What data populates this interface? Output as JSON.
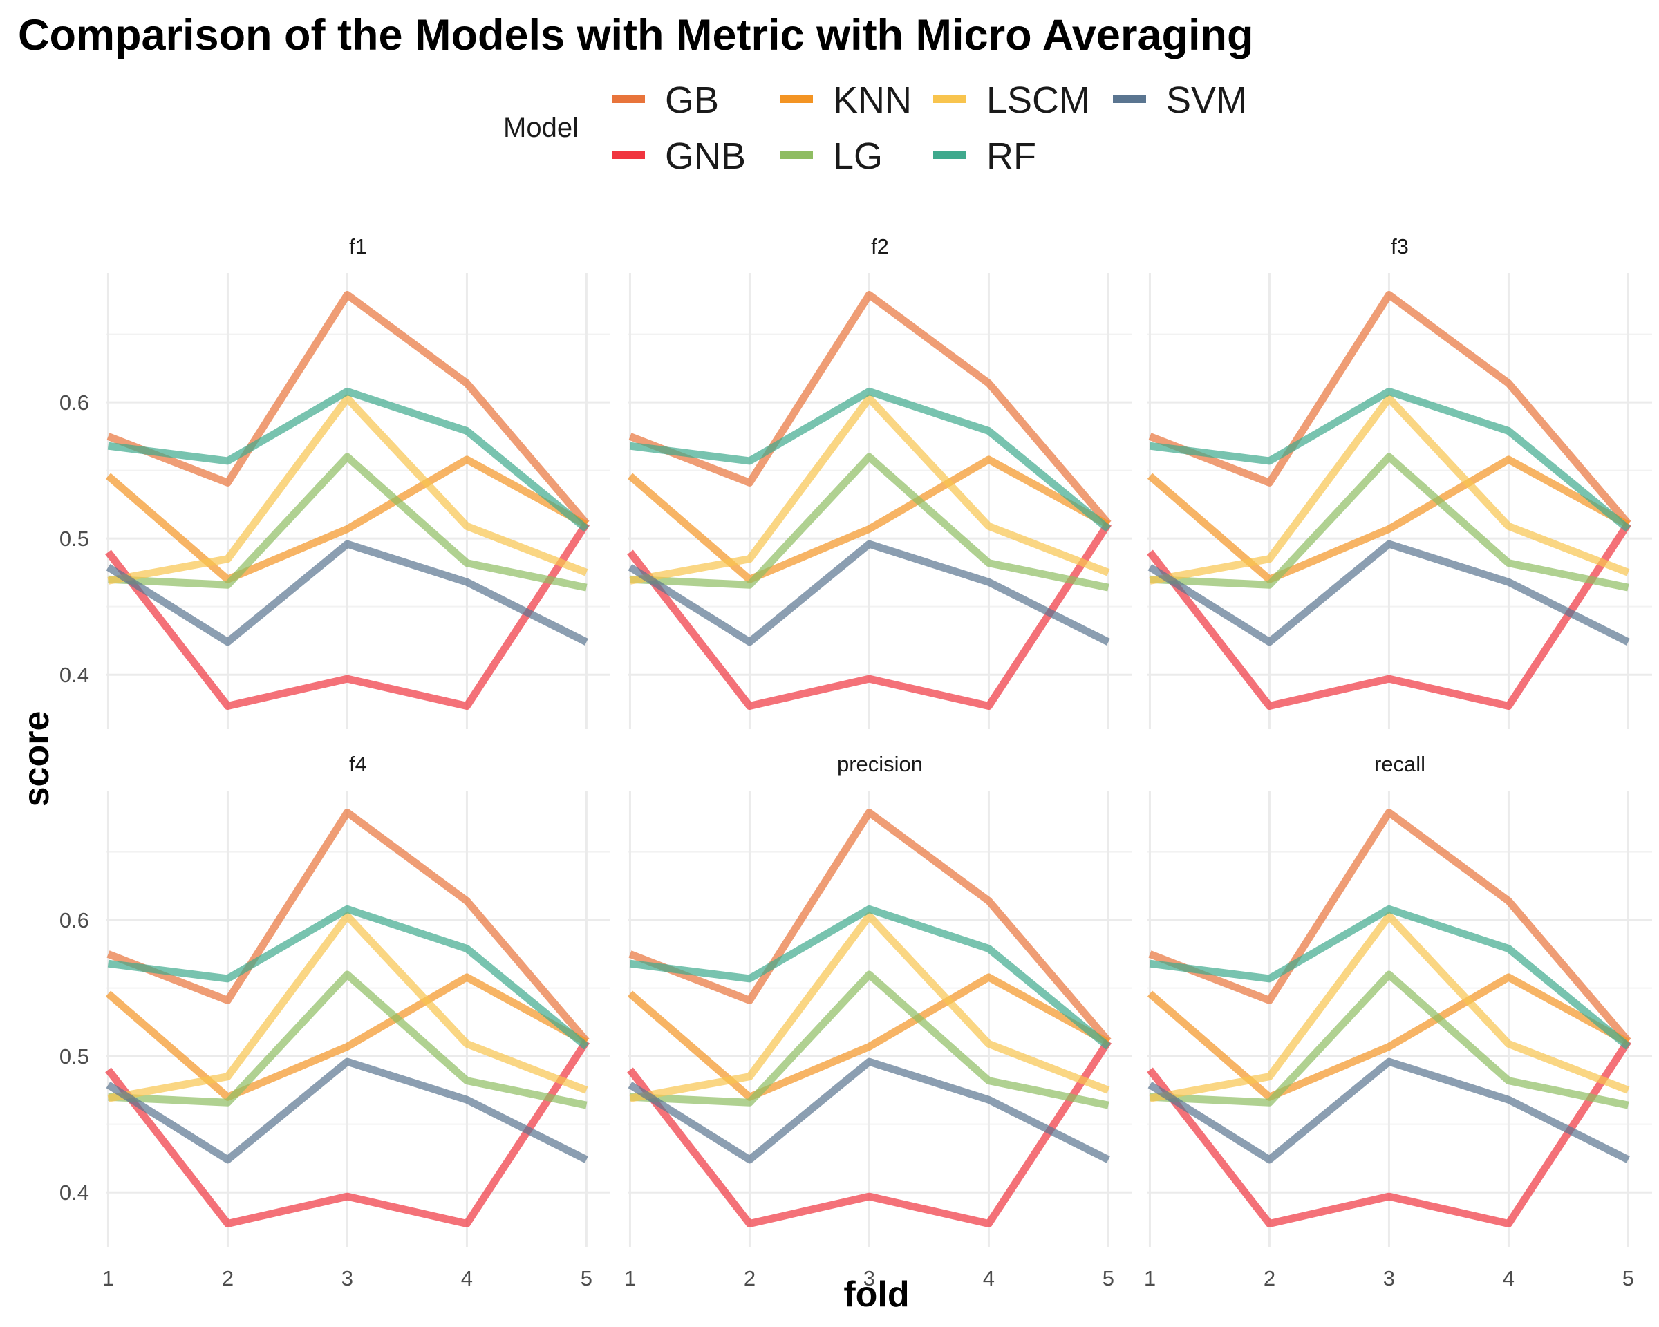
{
  "chart_data": {
    "type": "line",
    "title": "Comparison of the Models with Metric with Micro Averaging",
    "xlabel": "fold",
    "ylabel": "score",
    "x": [
      1,
      2,
      3,
      4,
      5
    ],
    "x_ticks": [
      "1",
      "2",
      "3",
      "4",
      "5"
    ],
    "xlim": [
      0.98,
      5.2
    ],
    "y_ticks": [
      0.4,
      0.5,
      0.6
    ],
    "y_tick_labels": [
      "0.4",
      "0.5",
      "0.6"
    ],
    "ylim": [
      0.36,
      0.695
    ],
    "grid": true,
    "legend": {
      "title": "Model",
      "position": "top",
      "entries": [
        "GB",
        "GNB",
        "KNN",
        "LG",
        "LSCM",
        "RF",
        "SVM"
      ]
    },
    "colors": {
      "GB": "#E8743B",
      "GNB": "#F0353F",
      "KNN": "#F39423",
      "LG": "#8FBD62",
      "LSCM": "#F8C44E",
      "RF": "#3FA98D",
      "SVM": "#5A7590"
    },
    "panels": [
      "f1",
      "f2",
      "f3",
      "f4",
      "precision",
      "recall"
    ],
    "series": [
      {
        "name": "GB",
        "values": [
          0.575,
          0.541,
          0.679,
          0.614,
          0.511
        ]
      },
      {
        "name": "GNB",
        "values": [
          0.49,
          0.377,
          0.397,
          0.377,
          0.511
        ]
      },
      {
        "name": "KNN",
        "values": [
          0.546,
          0.47,
          0.507,
          0.558,
          0.51
        ]
      },
      {
        "name": "LG",
        "values": [
          0.47,
          0.466,
          0.56,
          0.482,
          0.464
        ]
      },
      {
        "name": "LSCM",
        "values": [
          0.469,
          0.485,
          0.603,
          0.509,
          0.475
        ]
      },
      {
        "name": "RF",
        "values": [
          0.568,
          0.557,
          0.608,
          0.579,
          0.507
        ]
      },
      {
        "name": "SVM",
        "values": [
          0.479,
          0.424,
          0.496,
          0.468,
          0.424
        ]
      }
    ]
  }
}
